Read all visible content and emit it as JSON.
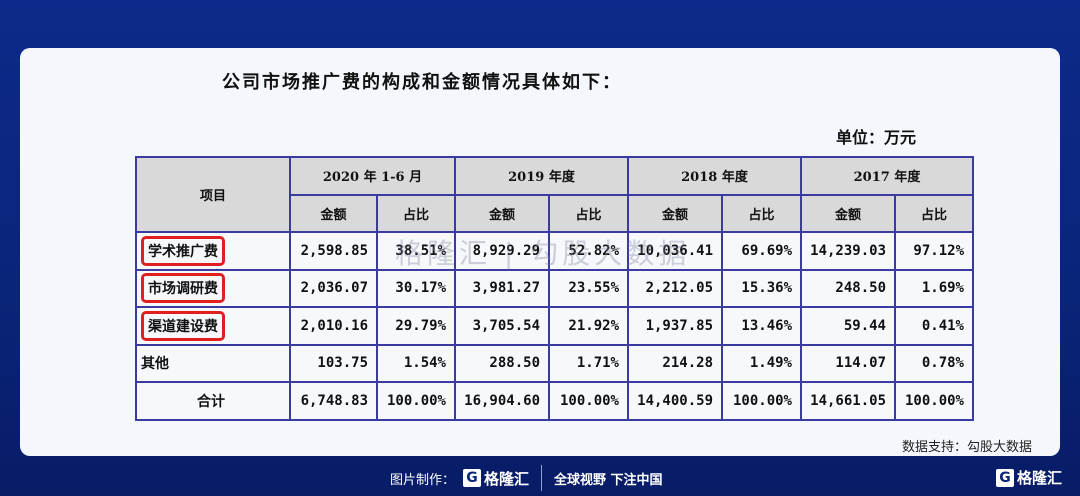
{
  "title": "公司市场推广费的构成和金额情况具体如下：",
  "unit": "单位：万元",
  "table": {
    "item_header": "项目",
    "periods": [
      "2020 年 1-6 月",
      "2019 年度",
      "2018 年度",
      "2017 年度"
    ],
    "sub": {
      "amount": "金额",
      "ratio": "占比"
    },
    "rows": [
      {
        "label": "学术推广费",
        "values": [
          "2,598.85",
          "38.51%",
          "8,929.29",
          "52.82%",
          "10,036.41",
          "69.69%",
          "14,239.03",
          "97.12%"
        ]
      },
      {
        "label": "市场调研费",
        "values": [
          "2,036.07",
          "30.17%",
          "3,981.27",
          "23.55%",
          "2,212.05",
          "15.36%",
          "248.50",
          "1.69%"
        ]
      },
      {
        "label": "渠道建设费",
        "values": [
          "2,010.16",
          "29.79%",
          "3,705.54",
          "21.92%",
          "1,937.85",
          "13.46%",
          "59.44",
          "0.41%"
        ]
      },
      {
        "label": "其他",
        "values": [
          "103.75",
          "1.54%",
          "288.50",
          "1.71%",
          "214.28",
          "1.49%",
          "114.07",
          "0.78%"
        ]
      },
      {
        "label": "合计",
        "values": [
          "6,748.83",
          "100.00%",
          "16,904.60",
          "100.00%",
          "14,400.59",
          "100.00%",
          "14,661.05",
          "100.00%"
        ]
      }
    ]
  },
  "watermark": "格隆汇 | 勾股大数据",
  "source": "数据支持：勾股大数据",
  "footer": {
    "made_by": "图片制作：",
    "brand": "格隆汇",
    "slogan": "全球视野 下注中国",
    "logo_letter": "G"
  },
  "colors": {
    "highlight": "#e02020",
    "border": "#3a3aa0",
    "background": "#0a2479"
  }
}
